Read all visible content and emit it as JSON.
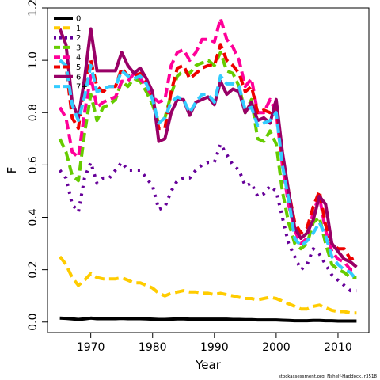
{
  "chart_data": {
    "type": "line",
    "xlabel": "Year",
    "ylabel": "F",
    "xlim": [
      1963,
      2015
    ],
    "ylim": [
      -0.04,
      1.2
    ],
    "x_ticks": [
      1970,
      1980,
      1990,
      2000,
      2010
    ],
    "y_ticks": [
      0.0,
      0.2,
      0.4,
      0.6,
      0.8,
      1.0,
      1.2
    ],
    "x_tick_labels": [
      "1970",
      "1980",
      "1990",
      "2000",
      "2010"
    ],
    "y_tick_labels": [
      "0.0",
      "0.2",
      "0.4",
      "0.6",
      "0.8",
      "1.0",
      "1.2"
    ],
    "grid": false,
    "legend_position": "top-left",
    "credit": "stockassessment.org, Nshelf-Haddock, r3518",
    "x": [
      1965,
      1966,
      1967,
      1968,
      1969,
      1970,
      1971,
      1972,
      1973,
      1974,
      1975,
      1976,
      1977,
      1978,
      1979,
      1980,
      1981,
      1982,
      1983,
      1984,
      1985,
      1986,
      1987,
      1988,
      1989,
      1990,
      1991,
      1992,
      1993,
      1994,
      1995,
      1996,
      1997,
      1998,
      1999,
      2000,
      2001,
      2002,
      2003,
      2004,
      2005,
      2006,
      2007,
      2008,
      2009,
      2010,
      2011,
      2012,
      2013
    ],
    "series": [
      {
        "name": "0",
        "color": "#000000",
        "dash": "solid",
        "values": [
          0.015,
          0.014,
          0.012,
          0.01,
          0.012,
          0.015,
          0.013,
          0.013,
          0.013,
          0.013,
          0.014,
          0.013,
          0.013,
          0.013,
          0.012,
          0.011,
          0.01,
          0.01,
          0.011,
          0.012,
          0.012,
          0.011,
          0.011,
          0.011,
          0.011,
          0.011,
          0.011,
          0.011,
          0.01,
          0.01,
          0.009,
          0.009,
          0.008,
          0.008,
          0.008,
          0.008,
          0.007,
          0.006,
          0.005,
          0.005,
          0.005,
          0.006,
          0.006,
          0.005,
          0.005,
          0.004,
          0.004,
          0.004,
          0.004
        ]
      },
      {
        "name": "1",
        "color": "#FFCC00",
        "dash": "dash",
        "values": [
          0.25,
          0.22,
          0.17,
          0.14,
          0.16,
          0.185,
          0.17,
          0.165,
          0.165,
          0.165,
          0.17,
          0.16,
          0.15,
          0.15,
          0.14,
          0.13,
          0.11,
          0.1,
          0.11,
          0.115,
          0.12,
          0.115,
          0.115,
          0.11,
          0.11,
          0.105,
          0.11,
          0.105,
          0.1,
          0.095,
          0.09,
          0.09,
          0.085,
          0.09,
          0.095,
          0.09,
          0.08,
          0.07,
          0.06,
          0.05,
          0.05,
          0.06,
          0.065,
          0.055,
          0.045,
          0.04,
          0.04,
          0.035,
          0.035
        ]
      },
      {
        "name": "2",
        "color": "#660099",
        "dash": "dot",
        "values": [
          0.58,
          0.55,
          0.45,
          0.42,
          0.55,
          0.61,
          0.53,
          0.55,
          0.55,
          0.58,
          0.61,
          0.58,
          0.58,
          0.58,
          0.55,
          0.52,
          0.43,
          0.44,
          0.5,
          0.54,
          0.55,
          0.55,
          0.58,
          0.6,
          0.61,
          0.61,
          0.68,
          0.64,
          0.6,
          0.58,
          0.52,
          0.53,
          0.48,
          0.49,
          0.52,
          0.5,
          0.4,
          0.3,
          0.25,
          0.2,
          0.22,
          0.28,
          0.26,
          0.22,
          0.18,
          0.16,
          0.14,
          0.12,
          0.12
        ]
      },
      {
        "name": "3",
        "color": "#66CC00",
        "dash": "dash",
        "values": [
          0.7,
          0.65,
          0.56,
          0.54,
          0.72,
          0.87,
          0.77,
          0.82,
          0.83,
          0.85,
          0.92,
          0.9,
          0.93,
          0.92,
          0.88,
          0.83,
          0.76,
          0.78,
          0.87,
          0.94,
          0.96,
          0.95,
          0.98,
          0.99,
          1.0,
          0.98,
          1.03,
          0.96,
          0.95,
          0.9,
          0.8,
          0.85,
          0.7,
          0.69,
          0.73,
          0.68,
          0.5,
          0.38,
          0.3,
          0.28,
          0.3,
          0.38,
          0.4,
          0.3,
          0.22,
          0.2,
          0.19,
          0.17,
          0.17
        ]
      },
      {
        "name": "4",
        "color": "#FF0099",
        "dash": "dash",
        "values": [
          0.82,
          0.78,
          0.65,
          0.63,
          0.8,
          0.94,
          0.82,
          0.84,
          0.85,
          0.86,
          0.92,
          0.92,
          0.95,
          0.93,
          0.9,
          0.86,
          0.84,
          0.85,
          0.98,
          1.03,
          1.04,
          1.0,
          1.03,
          1.08,
          1.08,
          1.07,
          1.16,
          1.08,
          1.05,
          1.0,
          0.9,
          0.93,
          0.8,
          0.8,
          0.85,
          0.8,
          0.6,
          0.45,
          0.35,
          0.3,
          0.32,
          0.42,
          0.48,
          0.35,
          0.27,
          0.24,
          0.23,
          0.2,
          0.2
        ]
      },
      {
        "name": "5",
        "color": "#EE0000",
        "dash": "dash",
        "values": [
          1.0,
          0.98,
          0.78,
          0.74,
          0.92,
          1.0,
          0.9,
          0.88,
          0.9,
          0.9,
          0.97,
          0.94,
          0.94,
          0.95,
          0.92,
          0.86,
          0.74,
          0.74,
          0.88,
          0.97,
          0.98,
          0.93,
          0.95,
          0.97,
          0.98,
          0.98,
          1.06,
          1.0,
          0.98,
          0.95,
          0.88,
          0.9,
          0.8,
          0.81,
          0.8,
          0.83,
          0.63,
          0.5,
          0.38,
          0.34,
          0.36,
          0.44,
          0.5,
          0.37,
          0.3,
          0.28,
          0.28,
          0.24,
          0.25
        ]
      },
      {
        "name": "6",
        "color": "#990066",
        "dash": "solid",
        "values": [
          1.12,
          1.06,
          0.84,
          0.78,
          0.93,
          1.12,
          0.96,
          0.96,
          0.96,
          0.96,
          1.03,
          0.98,
          0.95,
          0.97,
          0.93,
          0.88,
          0.69,
          0.7,
          0.8,
          0.85,
          0.85,
          0.79,
          0.84,
          0.85,
          0.86,
          0.83,
          0.92,
          0.87,
          0.89,
          0.88,
          0.8,
          0.84,
          0.77,
          0.78,
          0.76,
          0.85,
          0.65,
          0.5,
          0.36,
          0.32,
          0.34,
          0.39,
          0.48,
          0.45,
          0.3,
          0.27,
          0.24,
          0.23,
          0.21
        ]
      },
      {
        "name": "7+",
        "color": "#33CCFF",
        "dash": "dash",
        "values": [
          1.0,
          0.98,
          0.83,
          0.77,
          0.86,
          0.98,
          0.88,
          0.89,
          0.9,
          0.9,
          0.96,
          0.94,
          0.93,
          0.94,
          0.91,
          0.85,
          0.76,
          0.78,
          0.84,
          0.86,
          0.85,
          0.8,
          0.84,
          0.87,
          0.87,
          0.84,
          0.94,
          0.91,
          0.91,
          0.9,
          0.81,
          0.82,
          0.75,
          0.76,
          0.77,
          0.8,
          0.6,
          0.47,
          0.32,
          0.29,
          0.31,
          0.34,
          0.38,
          0.33,
          0.25,
          0.22,
          0.2,
          0.19,
          0.16
        ]
      }
    ]
  }
}
